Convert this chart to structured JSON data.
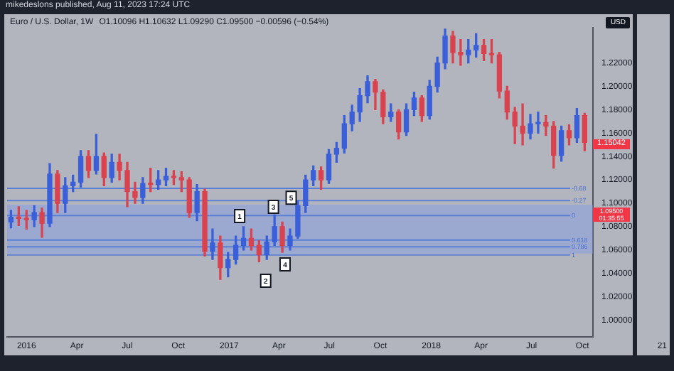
{
  "chart_data": {
    "type": "candlestick",
    "title": "Euro / U.S. Dollar, 1W",
    "subtitle": "O1.10096 H1.10632 L1.09290 C1.09500 −0.00596 (−0.54%)",
    "x": [
      "2015-12-04",
      "2015-12-18",
      "2016-01-01",
      "2016-01-15",
      "2016-01-29",
      "2016-02-12",
      "2016-02-26",
      "2016-03-11",
      "2016-03-25",
      "2016-04-08",
      "2016-04-22",
      "2016-05-06",
      "2016-05-20",
      "2016-06-03",
      "2016-06-17",
      "2016-07-01",
      "2016-07-15",
      "2016-07-29",
      "2016-08-12",
      "2016-08-26",
      "2016-09-09",
      "2016-09-23",
      "2016-10-07",
      "2016-10-21",
      "2016-11-04",
      "2016-11-18",
      "2016-12-02",
      "2016-12-16",
      "2016-12-30",
      "2017-01-13",
      "2017-01-27",
      "2017-02-10",
      "2017-02-24",
      "2017-03-10",
      "2017-03-24",
      "2017-04-07",
      "2017-04-21",
      "2017-05-05",
      "2017-05-19",
      "2017-06-02",
      "2017-06-16",
      "2017-06-30",
      "2017-07-14",
      "2017-07-28",
      "2017-08-11",
      "2017-08-25",
      "2017-09-08",
      "2017-09-22",
      "2017-10-06",
      "2017-10-20",
      "2017-11-03",
      "2017-11-17",
      "2017-12-01",
      "2017-12-15",
      "2017-12-29",
      "2018-01-12",
      "2018-01-26",
      "2018-02-09",
      "2018-02-23",
      "2018-03-09",
      "2018-03-23",
      "2018-04-06",
      "2018-04-20",
      "2018-05-04",
      "2018-05-18",
      "2018-06-01",
      "2018-06-15",
      "2018-06-29",
      "2018-07-13",
      "2018-07-27",
      "2018-08-10",
      "2018-08-24",
      "2018-09-07",
      "2018-09-21",
      "2018-10-05"
    ],
    "ohlc": [
      [
        1.084,
        1.094,
        1.079,
        1.088
      ],
      [
        1.088,
        1.097,
        1.081,
        1.087
      ],
      [
        1.087,
        1.094,
        1.078,
        1.086
      ],
      [
        1.086,
        1.098,
        1.08,
        1.092
      ],
      [
        1.092,
        1.096,
        1.071,
        1.083
      ],
      [
        1.083,
        1.134,
        1.08,
        1.125
      ],
      [
        1.125,
        1.128,
        1.092,
        1.1
      ],
      [
        1.1,
        1.122,
        1.092,
        1.115
      ],
      [
        1.115,
        1.124,
        1.11,
        1.118
      ],
      [
        1.118,
        1.145,
        1.114,
        1.14
      ],
      [
        1.14,
        1.145,
        1.122,
        1.128
      ],
      [
        1.128,
        1.159,
        1.125,
        1.14
      ],
      [
        1.14,
        1.143,
        1.115,
        1.122
      ],
      [
        1.122,
        1.142,
        1.118,
        1.135
      ],
      [
        1.135,
        1.142,
        1.12,
        1.128
      ],
      [
        1.128,
        1.135,
        1.097,
        1.11
      ],
      [
        1.11,
        1.118,
        1.1,
        1.105
      ],
      [
        1.105,
        1.122,
        1.1,
        1.117
      ],
      [
        1.117,
        1.13,
        1.11,
        1.116
      ],
      [
        1.116,
        1.128,
        1.112,
        1.12
      ],
      [
        1.12,
        1.13,
        1.115,
        1.123
      ],
      [
        1.123,
        1.128,
        1.116,
        1.122
      ],
      [
        1.122,
        1.127,
        1.11,
        1.12
      ],
      [
        1.12,
        1.122,
        1.088,
        1.092
      ],
      [
        1.092,
        1.116,
        1.085,
        1.11
      ],
      [
        1.11,
        1.112,
        1.055,
        1.059
      ],
      [
        1.059,
        1.078,
        1.052,
        1.066
      ],
      [
        1.066,
        1.072,
        1.035,
        1.045
      ],
      [
        1.045,
        1.058,
        1.037,
        1.052
      ],
      [
        1.052,
        1.072,
        1.048,
        1.064
      ],
      [
        1.064,
        1.08,
        1.06,
        1.07
      ],
      [
        1.07,
        1.078,
        1.06,
        1.064
      ],
      [
        1.064,
        1.068,
        1.05,
        1.056
      ],
      [
        1.056,
        1.072,
        1.052,
        1.067
      ],
      [
        1.067,
        1.09,
        1.064,
        1.08
      ],
      [
        1.08,
        1.084,
        1.058,
        1.064
      ],
      [
        1.064,
        1.078,
        1.06,
        1.072
      ],
      [
        1.072,
        1.102,
        1.07,
        1.098
      ],
      [
        1.098,
        1.124,
        1.092,
        1.12
      ],
      [
        1.12,
        1.132,
        1.115,
        1.128
      ],
      [
        1.128,
        1.131,
        1.112,
        1.12
      ],
      [
        1.12,
        1.146,
        1.117,
        1.142
      ],
      [
        1.142,
        1.152,
        1.135,
        1.147
      ],
      [
        1.147,
        1.175,
        1.143,
        1.168
      ],
      [
        1.168,
        1.184,
        1.162,
        1.178
      ],
      [
        1.178,
        1.198,
        1.17,
        1.192
      ],
      [
        1.192,
        1.209,
        1.186,
        1.204
      ],
      [
        1.204,
        1.206,
        1.18,
        1.195
      ],
      [
        1.195,
        1.197,
        1.168,
        1.174
      ],
      [
        1.174,
        1.185,
        1.17,
        1.178
      ],
      [
        1.178,
        1.18,
        1.155,
        1.161
      ],
      [
        1.161,
        1.185,
        1.158,
        1.18
      ],
      [
        1.18,
        1.195,
        1.175,
        1.19
      ],
      [
        1.19,
        1.192,
        1.17,
        1.175
      ],
      [
        1.175,
        1.205,
        1.172,
        1.2
      ],
      [
        1.2,
        1.225,
        1.195,
        1.22
      ],
      [
        1.22,
        1.249,
        1.215,
        1.243
      ],
      [
        1.243,
        1.247,
        1.22,
        1.229
      ],
      [
        1.229,
        1.24,
        1.218,
        1.227
      ],
      [
        1.227,
        1.24,
        1.22,
        1.231
      ],
      [
        1.231,
        1.245,
        1.225,
        1.235
      ],
      [
        1.235,
        1.24,
        1.222,
        1.228
      ],
      [
        1.228,
        1.24,
        1.22,
        1.227
      ],
      [
        1.227,
        1.229,
        1.19,
        1.196
      ],
      [
        1.196,
        1.2,
        1.172,
        1.178
      ],
      [
        1.178,
        1.182,
        1.151,
        1.166
      ],
      [
        1.166,
        1.185,
        1.15,
        1.16
      ],
      [
        1.16,
        1.176,
        1.155,
        1.168
      ],
      [
        1.168,
        1.178,
        1.16,
        1.169
      ],
      [
        1.169,
        1.175,
        1.158,
        1.166
      ],
      [
        1.166,
        1.17,
        1.13,
        1.141
      ],
      [
        1.141,
        1.166,
        1.136,
        1.162
      ],
      [
        1.162,
        1.167,
        1.15,
        1.156
      ],
      [
        1.156,
        1.181,
        1.152,
        1.175
      ],
      [
        1.175,
        1.177,
        1.145,
        1.152
      ]
    ],
    "colors": [
      "#3a5fd9",
      "#d9434f",
      "#d9434f",
      "#3a5fd9",
      "#d9434f",
      "#3a5fd9",
      "#d9434f",
      "#3a5fd9",
      "#3a5fd9",
      "#3a5fd9",
      "#d9434f",
      "#3a5fd9",
      "#d9434f",
      "#3a5fd9",
      "#d9434f",
      "#d9434f",
      "#d9434f",
      "#3a5fd9",
      "#d9434f",
      "#3a5fd9",
      "#3a5fd9",
      "#d9434f",
      "#d9434f",
      "#d9434f",
      "#3a5fd9",
      "#d9434f",
      "#3a5fd9",
      "#d9434f",
      "#3a5fd9",
      "#3a5fd9",
      "#3a5fd9",
      "#d9434f",
      "#d9434f",
      "#3a5fd9",
      "#3a5fd9",
      "#d9434f",
      "#3a5fd9",
      "#3a5fd9",
      "#3a5fd9",
      "#3a5fd9",
      "#d9434f",
      "#3a5fd9",
      "#3a5fd9",
      "#3a5fd9",
      "#3a5fd9",
      "#3a5fd9",
      "#3a5fd9",
      "#d9434f",
      "#d9434f",
      "#3a5fd9",
      "#d9434f",
      "#3a5fd9",
      "#3a5fd9",
      "#d9434f",
      "#3a5fd9",
      "#3a5fd9",
      "#3a5fd9",
      "#d9434f",
      "#d9434f",
      "#3a5fd9",
      "#3a5fd9",
      "#d9434f",
      "#d9434f",
      "#d9434f",
      "#d9434f",
      "#d9434f",
      "#d9434f",
      "#3a5fd9",
      "#3a5fd9",
      "#d9434f",
      "#d9434f",
      "#3a5fd9",
      "#d9434f",
      "#3a5fd9",
      "#d9434f"
    ],
    "xlim": [
      "2015-11-27",
      "2018-10-20"
    ],
    "xticks": [
      {
        "value": "2016-01-01",
        "label": "2016"
      },
      {
        "value": "2016-04-01",
        "label": "Apr"
      },
      {
        "value": "2016-07-01",
        "label": "Jul"
      },
      {
        "value": "2016-10-01",
        "label": "Oct"
      },
      {
        "value": "2017-01-01",
        "label": "2017"
      },
      {
        "value": "2017-04-01",
        "label": "Apr"
      },
      {
        "value": "2017-07-01",
        "label": "Jul"
      },
      {
        "value": "2017-10-01",
        "label": "Oct"
      },
      {
        "value": "2018-01-01",
        "label": "2018"
      },
      {
        "value": "2018-04-01",
        "label": "Apr"
      },
      {
        "value": "2018-07-01",
        "label": "Jul"
      },
      {
        "value": "2018-10-01",
        "label": "Oct"
      }
    ],
    "ylim": [
      0.986,
      1.25
    ],
    "yticks": [
      {
        "value": 1.0,
        "label": "1.00000"
      },
      {
        "value": 1.02,
        "label": "1.02000"
      },
      {
        "value": 1.04,
        "label": "1.04000"
      },
      {
        "value": 1.06,
        "label": "1.06000"
      },
      {
        "value": 1.08,
        "label": "1.08000"
      },
      {
        "value": 1.1,
        "label": "1.10000"
      },
      {
        "value": 1.12,
        "label": "1.12000"
      },
      {
        "value": 1.14,
        "label": "1.14000"
      },
      {
        "value": 1.16,
        "label": "1.16000"
      },
      {
        "value": 1.18,
        "label": "1.18000"
      },
      {
        "value": 1.2,
        "label": "1.20000"
      },
      {
        "value": 1.22,
        "label": "1.22000"
      }
    ],
    "ref_lines": [
      {
        "axis": "y",
        "value": 1.1128,
        "color": "#5b7fd6"
      },
      {
        "axis": "y",
        "value": 1.1023,
        "color": "#5b7fd6"
      },
      {
        "axis": "y",
        "value": 1.0895,
        "color": "#5b7fd6"
      },
      {
        "axis": "y",
        "value": 1.0686,
        "color": "#5b7fd6"
      },
      {
        "axis": "y",
        "value": 1.0628,
        "color": "#5b7fd6"
      },
      {
        "axis": "y",
        "value": 1.0558,
        "color": "#5b7fd6"
      }
    ],
    "bands": [
      {
        "axis": "y",
        "from": 1.057,
        "to": 1.0988,
        "color": "#7f9be6"
      }
    ],
    "annotations": [
      "mikedeslons published, Aug 11, 2023 17:24 UTC",
      "USD",
      "21",
      "1.15042",
      "1.09500",
      "01:35:55",
      {
        "text": "1",
        "x": "2017-01-20",
        "y": 1.089
      },
      {
        "text": "2",
        "x": "2017-03-08",
        "y": 1.0337
      },
      {
        "text": "3",
        "x": "2017-03-22",
        "y": 1.097
      },
      {
        "text": "4",
        "x": "2017-04-12",
        "y": 1.0477
      },
      {
        "text": "5",
        "x": "2017-04-23",
        "y": 1.1047
      },
      {
        "text": "-0.68",
        "x": "2018-09-09",
        "y": 1.1128
      },
      {
        "text": "-0.27",
        "x": "2018-09-09",
        "y": 1.1023
      },
      {
        "text": "0",
        "x": "2018-09-09",
        "y": 1.0895
      },
      {
        "text": "0.618",
        "x": "2018-09-09",
        "y": 1.0686
      },
      {
        "text": "0.786",
        "x": "2018-09-09",
        "y": 1.0628
      },
      {
        "text": "1",
        "x": "2018-09-09",
        "y": 1.0558
      }
    ],
    "grid": false
  }
}
